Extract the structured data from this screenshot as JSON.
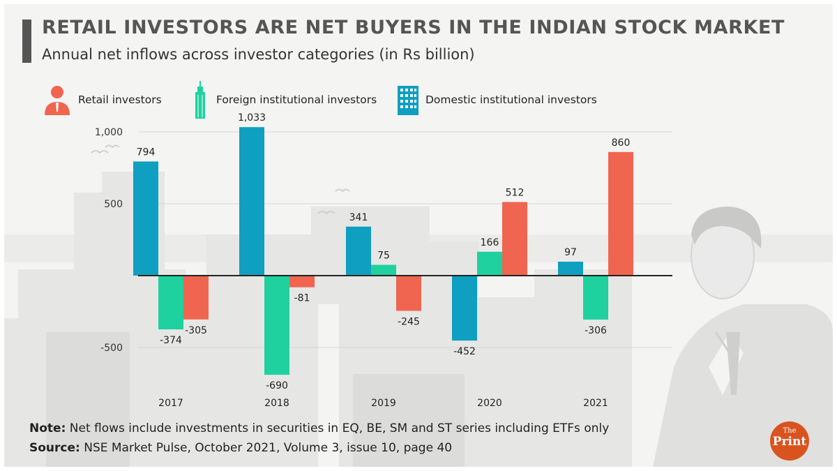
{
  "header": {
    "title": "Retail investors are net buyers in the Indian stock market",
    "subtitle": "Annual net inflows across investor categories (in Rs billion)"
  },
  "legend": [
    {
      "label": "Retail investors",
      "icon": "person-icon",
      "color": "#f0654f"
    },
    {
      "label": "Foreign institutional investors",
      "icon": "skyscraper-icon",
      "color": "#1fd19f"
    },
    {
      "label": "Domestic institutional investors",
      "icon": "building-icon",
      "color": "#0f9fc0"
    }
  ],
  "chart_data": {
    "type": "bar",
    "title": "Annual net inflows across investor categories (in Rs billion)",
    "categories": [
      "2017",
      "2018",
      "2019",
      "2020",
      "2021"
    ],
    "series": [
      {
        "name": "Domestic institutional investors",
        "color": "#0f9fc0",
        "values": [
          794,
          1033,
          341,
          -452,
          97
        ],
        "labels": [
          "794",
          "1,033",
          "341",
          "-452",
          "97"
        ]
      },
      {
        "name": "Foreign institutional investors",
        "color": "#1fd19f",
        "values": [
          -374,
          -690,
          75,
          166,
          -306
        ],
        "labels": [
          "-374",
          "-690",
          "75",
          "166",
          "-306"
        ]
      },
      {
        "name": "Retail investors",
        "color": "#f0654f",
        "values": [
          -305,
          -81,
          -245,
          512,
          860
        ],
        "labels": [
          "-305",
          "-81",
          "-245",
          "512",
          "860"
        ]
      }
    ],
    "y_ticks": [
      {
        "value": 1000,
        "label": "1,000"
      },
      {
        "value": 500,
        "label": "500"
      },
      {
        "value": -500,
        "label": "-500"
      }
    ],
    "ylim": [
      -800,
      1100
    ],
    "grid": true,
    "xlabel": "",
    "ylabel": ""
  },
  "footer": {
    "note_label": "Note:",
    "note_text": " Net flows include investments in securities in EQ, BE, SM and ST series including ETFs only",
    "source_label": "Source:",
    "source_text": " NSE Market Pulse, October 2021, Volume 3, issue 10, page 40"
  },
  "logo": {
    "top": "The",
    "bottom": "Print",
    "color": "#d9531e"
  }
}
